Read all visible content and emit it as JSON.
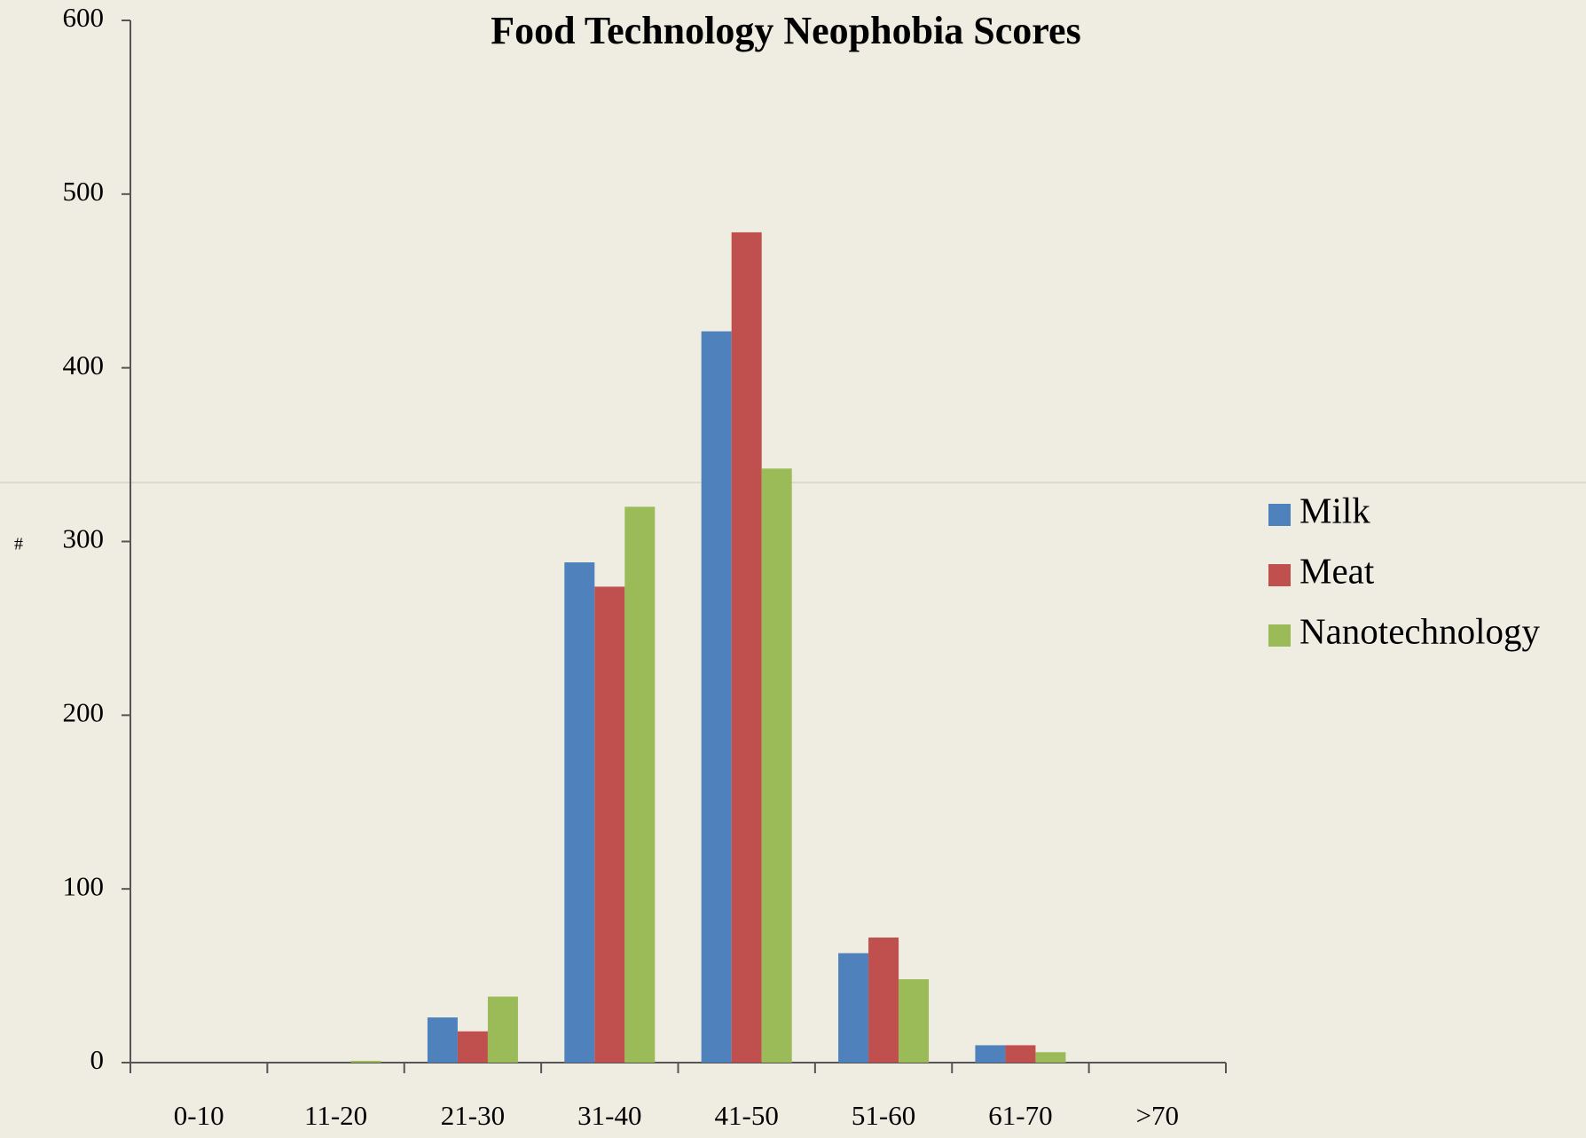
{
  "chart_data": {
    "type": "bar",
    "title": "Food Technology Neophobia Scores",
    "y_label": "#",
    "categories": [
      "0-10",
      "11-20",
      "21-30",
      "31-40",
      "41-50",
      "51-60",
      "61-70",
      ">70"
    ],
    "series": [
      {
        "name": "Milk",
        "color": "#4f81bd",
        "values": [
          0,
          0,
          26,
          288,
          421,
          63,
          10,
          0
        ]
      },
      {
        "name": "Meat",
        "color": "#c0504d",
        "values": [
          0,
          0,
          18,
          274,
          478,
          72,
          10,
          0
        ]
      },
      {
        "name": "Nanotechnology",
        "color": "#9bbb59",
        "values": [
          0,
          1,
          38,
          320,
          342,
          48,
          6,
          0
        ]
      }
    ],
    "ylim": [
      0,
      600
    ],
    "yticks": [
      0,
      100,
      200,
      300,
      400,
      500,
      600
    ],
    "grid": false,
    "legend": "right"
  }
}
